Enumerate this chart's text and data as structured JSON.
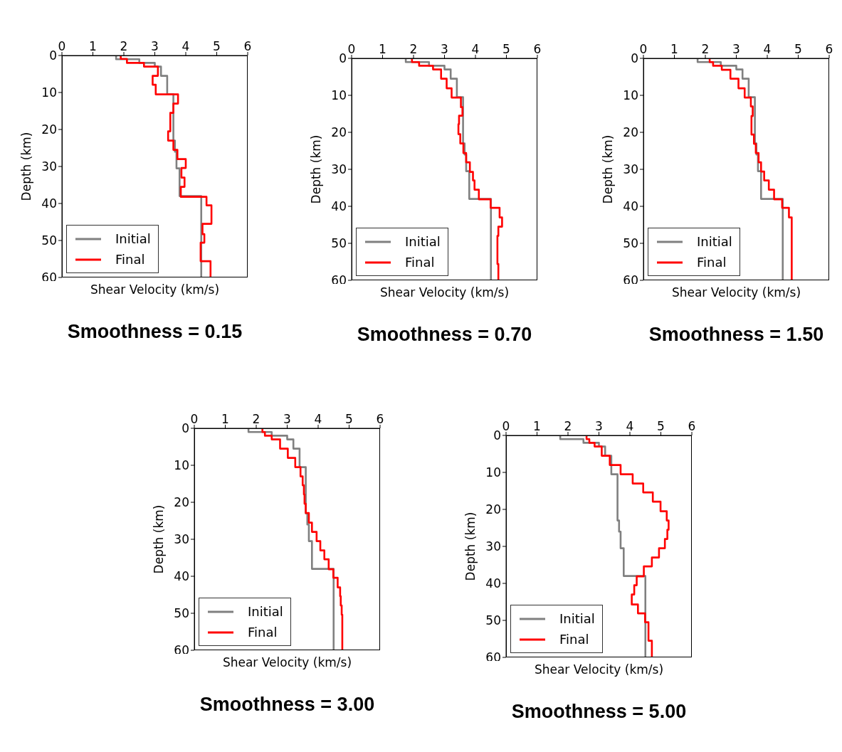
{
  "chart_data": [
    {
      "type": "line",
      "title": "Smoothness = 0.15",
      "xlabel": "Shear Velocity (km/s)",
      "ylabel": "Depth (km)",
      "xlim": [
        0,
        6
      ],
      "xticks": [
        0,
        1,
        2,
        3,
        4,
        5,
        6
      ],
      "ylim": [
        60,
        0
      ],
      "yticks": [
        0,
        10,
        20,
        30,
        40,
        50,
        60
      ],
      "legend": "bottom left",
      "grid": false,
      "series": [
        {
          "name": "Initial",
          "color": "#808080",
          "x": [
            1.75,
            1.75,
            2.5,
            2.5,
            3.0,
            3.0,
            3.2,
            3.2,
            3.4,
            3.4,
            3.6,
            3.6,
            3.65,
            3.65,
            3.7,
            3.7,
            3.8,
            3.8,
            4.5,
            4.5
          ],
          "values": [
            0,
            1,
            1,
            2,
            2,
            3,
            3,
            5.5,
            5.5,
            10.5,
            10.5,
            23,
            23,
            26,
            26,
            30.5,
            30.5,
            38,
            38,
            60
          ]
        },
        {
          "name": "Final",
          "color": "#ff0000",
          "x": [
            1.9,
            1.9,
            2.1,
            2.1,
            2.65,
            2.65,
            3.1,
            3.1,
            2.93,
            2.93,
            3.03,
            3.03,
            3.75,
            3.75,
            3.6,
            3.6,
            3.5,
            3.5,
            3.43,
            3.43,
            3.6,
            3.6,
            3.73,
            3.73,
            4.0,
            4.0,
            3.86,
            3.86,
            3.96,
            3.96,
            3.84,
            3.84,
            4.67,
            4.67,
            4.83,
            4.83,
            4.54,
            4.54,
            4.6,
            4.6,
            4.48,
            4.48,
            4.8,
            4.8
          ],
          "values": [
            0,
            0.9,
            0.9,
            2,
            2,
            3,
            3,
            5.5,
            5.5,
            7.9,
            7.9,
            10.5,
            10.5,
            13,
            13,
            15.5,
            15.5,
            20.5,
            20.5,
            23,
            23,
            25.5,
            25.5,
            28,
            28,
            30.4,
            30.4,
            33,
            33,
            35.5,
            35.5,
            38.2,
            38.2,
            40.5,
            40.5,
            45.5,
            45.5,
            48.3,
            48.3,
            50.6,
            50.6,
            55.6,
            55.6,
            60
          ]
        }
      ]
    },
    {
      "type": "line",
      "title": "Smoothness = 0.70",
      "xlabel": "Shear Velocity (km/s)",
      "ylabel": "Depth (km)",
      "xlim": [
        0,
        6
      ],
      "xticks": [
        0,
        1,
        2,
        3,
        4,
        5,
        6
      ],
      "ylim": [
        60,
        0
      ],
      "yticks": [
        0,
        10,
        20,
        30,
        40,
        50,
        60
      ],
      "legend": "bottom left",
      "grid": false,
      "series": [
        {
          "name": "Initial",
          "color": "#808080",
          "x": [
            1.75,
            1.75,
            2.5,
            2.5,
            3.0,
            3.0,
            3.2,
            3.2,
            3.4,
            3.4,
            3.6,
            3.6,
            3.65,
            3.65,
            3.7,
            3.7,
            3.8,
            3.8,
            4.5,
            4.5
          ],
          "values": [
            0,
            1,
            1,
            2,
            2,
            3,
            3,
            5.5,
            5.5,
            10.5,
            10.5,
            23,
            23,
            26,
            26,
            30.5,
            30.5,
            38,
            38,
            60
          ]
        },
        {
          "name": "Final",
          "color": "#ff0000",
          "x": [
            1.95,
            1.95,
            2.18,
            2.18,
            2.63,
            2.63,
            2.89,
            2.89,
            3.07,
            3.07,
            3.23,
            3.23,
            3.53,
            3.53,
            3.58,
            3.58,
            3.47,
            3.47,
            3.45,
            3.45,
            3.51,
            3.51,
            3.61,
            3.61,
            3.7,
            3.7,
            3.82,
            3.82,
            3.92,
            3.92,
            3.97,
            3.97,
            4.11,
            4.11,
            4.49,
            4.49,
            4.78,
            4.78,
            4.86,
            4.86,
            4.74,
            4.74,
            4.71,
            4.71,
            4.74,
            4.74
          ],
          "values": [
            0,
            1,
            1,
            2,
            2,
            3,
            3,
            5.5,
            5.5,
            8.1,
            8.1,
            10.6,
            10.6,
            13.2,
            13.2,
            15.5,
            15.5,
            17.8,
            17.8,
            20.5,
            20.5,
            23,
            23,
            25.6,
            25.6,
            28.1,
            28.1,
            30.7,
            30.7,
            33,
            33,
            35.5,
            35.5,
            38.1,
            38.1,
            40.4,
            40.4,
            43,
            43,
            45.5,
            45.5,
            48,
            48,
            55.6,
            55.6,
            60
          ]
        }
      ]
    },
    {
      "type": "line",
      "title": "Smoothness = 1.50",
      "xlabel": "Shear Velocity (km/s)",
      "ylabel": "Depth (km)",
      "xlim": [
        0,
        6
      ],
      "xticks": [
        0,
        1,
        2,
        3,
        4,
        5,
        6
      ],
      "ylim": [
        60,
        0
      ],
      "yticks": [
        0,
        10,
        20,
        30,
        40,
        50,
        60
      ],
      "legend": "bottom left",
      "grid": false,
      "series": [
        {
          "name": "Initial",
          "color": "#808080",
          "x": [
            1.75,
            1.75,
            2.5,
            2.5,
            3.0,
            3.0,
            3.2,
            3.2,
            3.4,
            3.4,
            3.6,
            3.6,
            3.65,
            3.65,
            3.7,
            3.7,
            3.8,
            3.8,
            4.5,
            4.5
          ],
          "values": [
            0,
            1,
            1,
            2,
            2,
            3,
            3,
            5.5,
            5.5,
            10.5,
            10.5,
            23,
            23,
            26,
            26,
            30.5,
            30.5,
            38,
            38,
            60
          ]
        },
        {
          "name": "Final",
          "color": "#ff0000",
          "x": [
            2.14,
            2.14,
            2.25,
            2.25,
            2.53,
            2.53,
            2.81,
            2.81,
            3.07,
            3.07,
            3.27,
            3.27,
            3.47,
            3.47,
            3.53,
            3.53,
            3.49,
            3.49,
            3.57,
            3.57,
            3.63,
            3.63,
            3.72,
            3.72,
            3.8,
            3.8,
            3.9,
            3.9,
            4.05,
            4.05,
            4.22,
            4.22,
            4.48,
            4.48,
            4.7,
            4.7,
            4.79,
            4.79
          ],
          "values": [
            0,
            1,
            1,
            2,
            2,
            3.1,
            3.1,
            5.5,
            5.5,
            8.1,
            8.1,
            10.6,
            10.6,
            13,
            13,
            15.6,
            15.6,
            20.6,
            20.6,
            23.1,
            23.1,
            25.6,
            25.6,
            28.1,
            28.1,
            30.6,
            30.6,
            33,
            33,
            35.5,
            35.5,
            38.1,
            38.1,
            40.4,
            40.4,
            43,
            43,
            60
          ]
        }
      ]
    },
    {
      "type": "line",
      "title": "Smoothness = 3.00",
      "xlabel": "Shear Velocity (km/s)",
      "ylabel": "Depth (km)",
      "xlim": [
        0,
        6
      ],
      "xticks": [
        0,
        1,
        2,
        3,
        4,
        5,
        6
      ],
      "ylim": [
        60,
        0
      ],
      "yticks": [
        0,
        10,
        20,
        30,
        40,
        50,
        60
      ],
      "legend": "bottom left",
      "grid": false,
      "series": [
        {
          "name": "Initial",
          "color": "#808080",
          "x": [
            1.75,
            1.75,
            2.5,
            2.5,
            3.0,
            3.0,
            3.2,
            3.2,
            3.4,
            3.4,
            3.6,
            3.6,
            3.65,
            3.65,
            3.7,
            3.7,
            3.8,
            3.8,
            4.5,
            4.5
          ],
          "values": [
            0,
            1,
            1,
            2,
            2,
            3,
            3,
            5.5,
            5.5,
            10.5,
            10.5,
            23,
            23,
            26,
            26,
            30.5,
            30.5,
            38,
            38,
            60
          ]
        },
        {
          "name": "Final",
          "color": "#ff0000",
          "x": [
            2.2,
            2.2,
            2.28,
            2.28,
            2.5,
            2.5,
            2.77,
            2.77,
            3.02,
            3.02,
            3.26,
            3.26,
            3.43,
            3.43,
            3.5,
            3.5,
            3.54,
            3.54,
            3.56,
            3.56,
            3.6,
            3.6,
            3.7,
            3.7,
            3.8,
            3.8,
            3.95,
            3.95,
            4.07,
            4.07,
            4.2,
            4.2,
            4.34,
            4.34,
            4.49,
            4.49,
            4.63,
            4.63,
            4.71,
            4.71,
            4.73,
            4.73,
            4.76,
            4.76,
            4.78,
            4.78
          ],
          "values": [
            0,
            1,
            1,
            2,
            2,
            3,
            3,
            5.5,
            5.5,
            8,
            8,
            10.5,
            10.5,
            13,
            13,
            15.4,
            15.4,
            17.9,
            17.9,
            20.4,
            20.4,
            22.9,
            22.9,
            25.5,
            25.5,
            28,
            28,
            30.5,
            30.5,
            33,
            33,
            35.4,
            35.4,
            38.1,
            38.1,
            40.4,
            40.4,
            43,
            43,
            45.4,
            45.4,
            47.9,
            47.9,
            50.4,
            50.4,
            60
          ]
        }
      ]
    },
    {
      "type": "line",
      "title": "Smoothness = 5.00",
      "xlabel": "Shear Velocity (km/s)",
      "ylabel": "Depth (km)",
      "xlim": [
        0,
        6
      ],
      "xticks": [
        0,
        1,
        2,
        3,
        4,
        5,
        6
      ],
      "ylim": [
        60,
        0
      ],
      "yticks": [
        0,
        10,
        20,
        30,
        40,
        50,
        60
      ],
      "legend": "bottom left",
      "grid": false,
      "series": [
        {
          "name": "Initial",
          "color": "#808080",
          "x": [
            1.75,
            1.75,
            2.5,
            2.5,
            3.0,
            3.0,
            3.2,
            3.2,
            3.4,
            3.4,
            3.6,
            3.6,
            3.65,
            3.65,
            3.7,
            3.7,
            3.8,
            3.8,
            4.5,
            4.5
          ],
          "values": [
            0,
            1,
            1,
            2,
            2,
            3,
            3,
            5.5,
            5.5,
            10.5,
            10.5,
            23,
            23,
            26,
            26,
            30.5,
            30.5,
            38,
            38,
            60
          ]
        },
        {
          "name": "Final",
          "color": "#ff0000",
          "x": [
            2.6,
            2.6,
            2.69,
            2.69,
            2.86,
            2.86,
            3.09,
            3.09,
            3.35,
            3.35,
            3.7,
            3.7,
            4.09,
            4.09,
            4.43,
            4.43,
            4.74,
            4.74,
            4.99,
            4.99,
            5.19,
            5.19,
            5.25,
            5.25,
            5.21,
            5.21,
            5.13,
            5.13,
            4.94,
            4.94,
            4.71,
            4.71,
            4.45,
            4.45,
            4.22,
            4.22,
            4.14,
            4.14,
            4.06,
            4.06,
            4.26,
            4.26,
            4.49,
            4.49,
            4.6,
            4.6,
            4.71,
            4.71
          ],
          "values": [
            0,
            1,
            1,
            2,
            2,
            3,
            3,
            5.5,
            5.5,
            8,
            8,
            10.5,
            10.5,
            13,
            13,
            15.4,
            15.4,
            17.9,
            17.9,
            20.5,
            20.5,
            23,
            23,
            25.5,
            25.5,
            28,
            28,
            30.5,
            30.5,
            33,
            33,
            35.4,
            35.4,
            38.1,
            38.1,
            40.5,
            40.5,
            43,
            43,
            45.7,
            45.7,
            48.1,
            48.1,
            50.5,
            50.5,
            55.5,
            55.5,
            60
          ]
        }
      ]
    }
  ]
}
